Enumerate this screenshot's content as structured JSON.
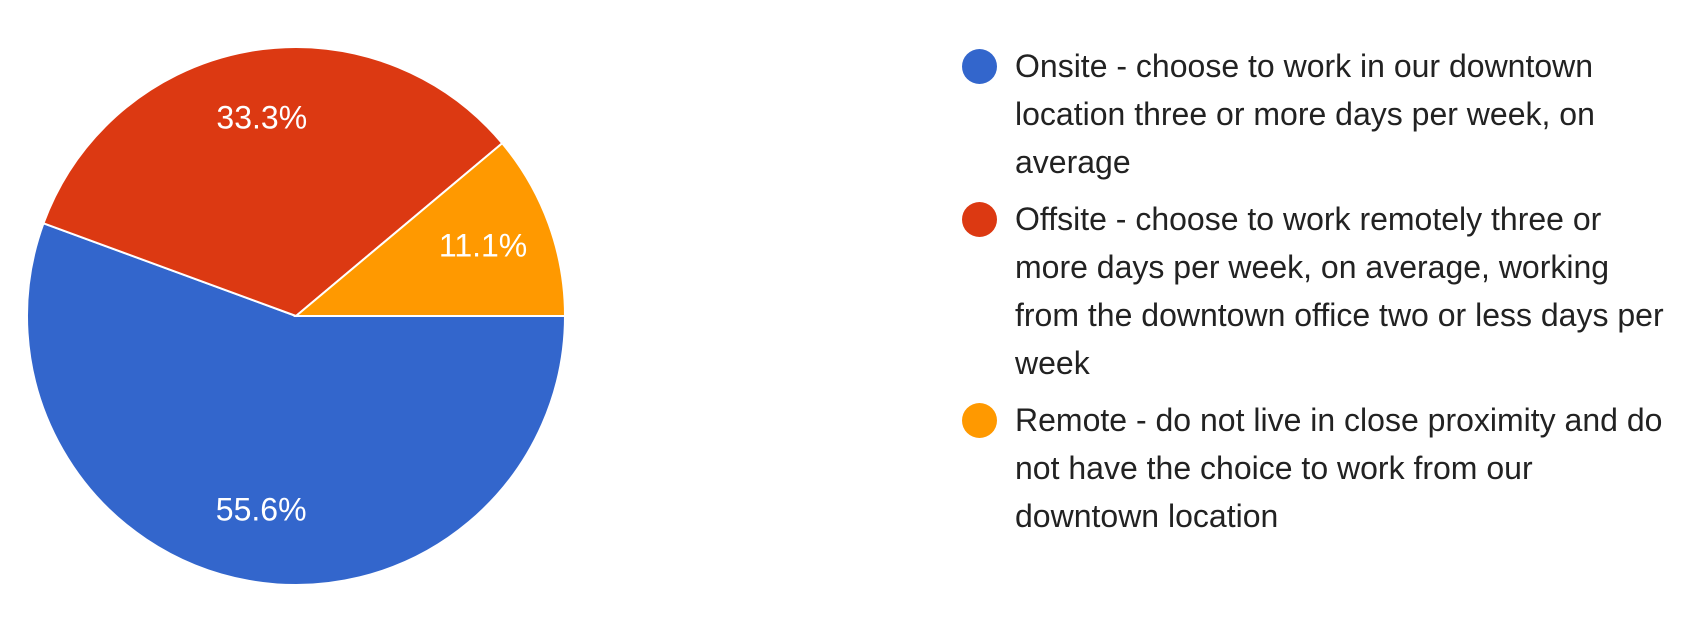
{
  "chart_data": {
    "type": "pie",
    "categories": [
      "Onsite - choose to work in our downtown location three or more days per week, on average",
      "Offsite - choose to work remotely three or more days per week, on average, working from the downtown office two or less days per week",
      "Remote - do not live in close proximity and do not have the choice to work from our downtown location"
    ],
    "values": [
      55.6,
      33.3,
      11.1
    ],
    "value_labels": [
      "55.6%",
      "33.3%",
      "11.1%"
    ],
    "colors": [
      "#3366cc",
      "#dc3912",
      "#ff9900"
    ]
  }
}
